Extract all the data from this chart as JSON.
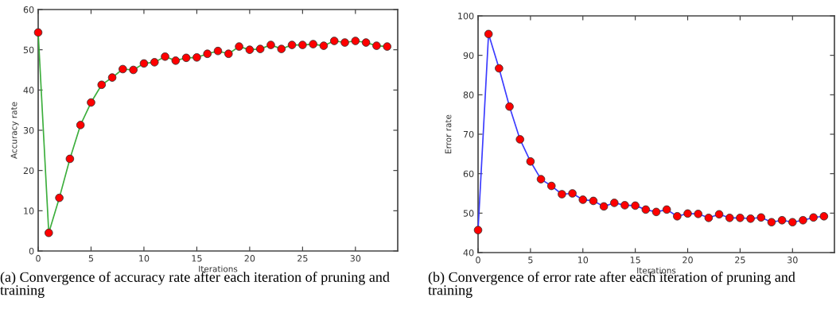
{
  "chart_data": [
    {
      "type": "line",
      "xlabel": "Iterations",
      "ylabel": "Accuracy rate",
      "xlim": [
        0,
        34
      ],
      "xticks": [
        0,
        5,
        10,
        15,
        20,
        25,
        30
      ],
      "ylim": [
        0,
        60
      ],
      "yticks": [
        0,
        10,
        20,
        30,
        40,
        50,
        60
      ],
      "marker": "circle",
      "line_style": "solid",
      "grid": false,
      "legend": false,
      "annotations": [
        "(a) Convergence of accuracy rate after each iteration of pruning and training"
      ],
      "x": [
        0,
        1,
        2,
        3,
        4,
        5,
        6,
        7,
        8,
        9,
        10,
        11,
        12,
        13,
        14,
        15,
        16,
        17,
        18,
        19,
        20,
        21,
        22,
        23,
        24,
        25,
        26,
        27,
        28,
        29,
        30,
        31,
        32,
        33
      ],
      "series": [
        {
          "color": "#3cae3c",
          "values": [
            54.3,
            4.5,
            13.2,
            22.9,
            31.3,
            36.9,
            41.3,
            43.1,
            45.2,
            45.0,
            46.6,
            46.9,
            48.3,
            47.3,
            48.0,
            48.1,
            49.0,
            49.7,
            49.0,
            50.8,
            50.0,
            50.2,
            51.2,
            50.2,
            51.2,
            51.2,
            51.4,
            51.0,
            52.2,
            51.8,
            52.2,
            51.8,
            51.0,
            50.8
          ]
        }
      ]
    },
    {
      "type": "line",
      "xlabel": "Iterations",
      "ylabel": "Error rate",
      "xlim": [
        0,
        34
      ],
      "xticks": [
        0,
        5,
        10,
        15,
        20,
        25,
        30
      ],
      "ylim": [
        40,
        100
      ],
      "yticks": [
        40,
        50,
        60,
        70,
        80,
        90,
        100
      ],
      "marker": "circle",
      "line_style": "solid",
      "grid": false,
      "legend": false,
      "annotations": [
        "(b) Convergence of error rate after each iteration of pruning and training"
      ],
      "x": [
        0,
        1,
        2,
        3,
        4,
        5,
        6,
        7,
        8,
        9,
        10,
        11,
        12,
        13,
        14,
        15,
        16,
        17,
        18,
        19,
        20,
        21,
        22,
        23,
        24,
        25,
        26,
        27,
        28,
        29,
        30,
        31,
        32,
        33
      ],
      "series": [
        {
          "color": "#3b3bff",
          "values": [
            45.7,
            95.4,
            86.7,
            77.0,
            68.7,
            63.1,
            58.6,
            56.9,
            54.8,
            55.0,
            53.4,
            53.1,
            51.7,
            52.6,
            52.0,
            51.9,
            50.9,
            50.3,
            50.9,
            49.2,
            49.9,
            49.8,
            48.8,
            49.7,
            48.8,
            48.8,
            48.6,
            48.9,
            47.7,
            48.2,
            47.7,
            48.2,
            48.9,
            49.2
          ]
        }
      ]
    }
  ]
}
